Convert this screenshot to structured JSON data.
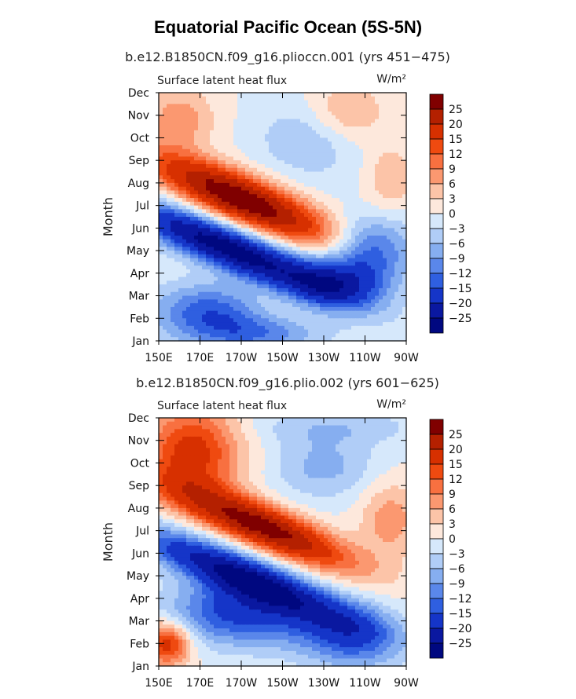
{
  "figure": {
    "title": "Equatorial Pacific Ocean (5S-5N)"
  },
  "colorbar": {
    "levels": [
      "25",
      "20",
      "15",
      "12",
      "9",
      "6",
      "3",
      "0",
      "−3",
      "−6",
      "−9",
      "−12",
      "−15",
      "−20",
      "−25"
    ],
    "colors": [
      "#800000",
      "#b42000",
      "#d73000",
      "#ef4a10",
      "#f87040",
      "#fb9870",
      "#fcc4a8",
      "#fde8dc",
      "#d6e8fb",
      "#b0cdf7",
      "#86aef0",
      "#5a87ea",
      "#2f5fe0",
      "#1535c8",
      "#0a18a0",
      "#000880"
    ]
  },
  "chart_data": [
    {
      "type": "heatmap",
      "subtitle": "b.e12.B1850CN.f09_g16.plioccn.001 (yrs 451−475)",
      "variable_label": "Surface latent heat flux",
      "units_label": "W/m²",
      "ylabel": "Month",
      "x_ticks": [
        "150E",
        "170E",
        "170W",
        "150W",
        "130W",
        "110W",
        "90W"
      ],
      "y_ticks": [
        "Jan",
        "Feb",
        "Mar",
        "Apr",
        "May",
        "Jun",
        "Jul",
        "Aug",
        "Sep",
        "Oct",
        "Nov",
        "Dec"
      ],
      "x_range": [
        150,
        270
      ],
      "y_range": [
        1,
        12
      ],
      "band_slope": -28,
      "features": [
        {
          "type": "band",
          "value": 30,
          "x": 190,
          "y": 7.3,
          "sx": 30,
          "sy": 1.2
        },
        {
          "type": "band",
          "value": -28,
          "x": 184,
          "y": 5.1,
          "sx": 36,
          "sy": 1.1
        },
        {
          "type": "blob",
          "value": 8,
          "x": 160,
          "y": 10.8,
          "sx": 12,
          "sy": 1.0
        },
        {
          "type": "blob",
          "value": 8,
          "x": 240,
          "y": 11.0,
          "sx": 14,
          "sy": 1.0
        },
        {
          "type": "blob",
          "value": -7,
          "x": 225,
          "y": 10.0,
          "sx": 18,
          "sy": 1.2
        },
        {
          "type": "blob",
          "value": 4,
          "x": 210,
          "y": 2.8,
          "sx": 16,
          "sy": 0.9
        },
        {
          "type": "blob",
          "value": -14,
          "x": 175,
          "y": 2.3,
          "sx": 20,
          "sy": 0.9
        },
        {
          "type": "blob",
          "value": -16,
          "x": 235,
          "y": 3.5,
          "sx": 18,
          "sy": 0.8
        },
        {
          "type": "blob",
          "value": 6,
          "x": 262,
          "y": 8.2,
          "sx": 8,
          "sy": 1.0
        },
        {
          "type": "blob",
          "value": -14,
          "x": 253,
          "y": 5.0,
          "sx": 14,
          "sy": 1.0
        },
        {
          "type": "blob",
          "value": -10,
          "x": 200,
          "y": 1.3,
          "sx": 22,
          "sy": 0.6
        }
      ]
    },
    {
      "type": "heatmap",
      "subtitle": "b.e12.B1850CN.f09_g16.plio.002 (yrs 601−625)",
      "variable_label": "Surface latent heat flux",
      "units_label": "W/m²",
      "ylabel": "Month",
      "x_ticks": [
        "150E",
        "170E",
        "170W",
        "150W",
        "130W",
        "110W",
        "90W"
      ],
      "y_ticks": [
        "Jan",
        "Feb",
        "Mar",
        "Apr",
        "May",
        "Jun",
        "Jul",
        "Aug",
        "Sep",
        "Oct",
        "Nov",
        "Dec"
      ],
      "x_range": [
        150,
        270
      ],
      "y_range": [
        1,
        12
      ],
      "band_slope": -28,
      "features": [
        {
          "type": "band",
          "value": 28,
          "x": 200,
          "y": 7.2,
          "sx": 30,
          "sy": 1.1
        },
        {
          "type": "band",
          "value": -25,
          "x": 190,
          "y": 5.0,
          "sx": 36,
          "sy": 1.1
        },
        {
          "type": "blob",
          "value": 12,
          "x": 170,
          "y": 10.5,
          "sx": 16,
          "sy": 1.5
        },
        {
          "type": "blob",
          "value": 6,
          "x": 160,
          "y": 10.5,
          "sx": 14,
          "sy": 1.4
        },
        {
          "type": "blob",
          "value": -7,
          "x": 230,
          "y": 9.8,
          "sx": 18,
          "sy": 1.0
        },
        {
          "type": "blob",
          "value": -5,
          "x": 235,
          "y": 11.6,
          "sx": 30,
          "sy": 0.6
        },
        {
          "type": "blob",
          "value": 18,
          "x": 154,
          "y": 2.0,
          "sx": 8,
          "sy": 0.7
        },
        {
          "type": "blob",
          "value": -6,
          "x": 220,
          "y": 2.7,
          "sx": 20,
          "sy": 0.9
        },
        {
          "type": "blob",
          "value": -15,
          "x": 185,
          "y": 3.4,
          "sx": 22,
          "sy": 1.0
        },
        {
          "type": "blob",
          "value": -12,
          "x": 245,
          "y": 2.2,
          "sx": 16,
          "sy": 1.0
        },
        {
          "type": "blob",
          "value": 8,
          "x": 262,
          "y": 7.5,
          "sx": 10,
          "sy": 1.2
        }
      ]
    }
  ]
}
